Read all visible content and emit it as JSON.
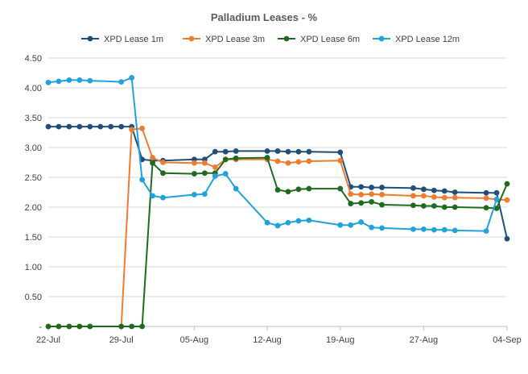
{
  "chart_data": {
    "type": "line",
    "title": "Palladium Leases - %",
    "xlabel": "",
    "ylabel": "",
    "ylim": [
      0,
      4.5
    ],
    "y_ticks": [
      0,
      0.5,
      1.0,
      1.5,
      2.0,
      2.5,
      3.0,
      3.5,
      4.0,
      4.5
    ],
    "y_tick_labels": [
      "-",
      "0.50",
      "1.00",
      "1.50",
      "2.00",
      "2.50",
      "3.00",
      "3.50",
      "4.00",
      "4.50"
    ],
    "x_tick_labels": [
      "22-Jul",
      "29-Jul",
      "05-Aug",
      "12-Aug",
      "19-Aug",
      "27-Aug",
      "04-Sep"
    ],
    "x_tick_categories": [
      "22-Jul",
      "29-Jul",
      "05-Aug",
      "12-Aug",
      "19-Aug",
      "27-Aug",
      "04-Sep"
    ],
    "grid": "horizontal",
    "legend_position": "top",
    "categories": [
      "22-Jul",
      "23-Jul",
      "24-Jul",
      "25-Jul",
      "26-Jul",
      "27-Jul",
      "28-Jul",
      "29-Jul",
      "30-Jul",
      "31-Jul",
      "01-Aug",
      "02-Aug",
      "03-Aug",
      "04-Aug",
      "05-Aug",
      "06-Aug",
      "07-Aug",
      "08-Aug",
      "09-Aug",
      "10-Aug",
      "11-Aug",
      "12-Aug",
      "13-Aug",
      "14-Aug",
      "15-Aug",
      "16-Aug",
      "17-Aug",
      "18-Aug",
      "19-Aug",
      "20-Aug",
      "21-Aug",
      "22-Aug",
      "23-Aug",
      "24-Aug",
      "25-Aug",
      "26-Aug",
      "27-Aug",
      "28-Aug",
      "29-Aug",
      "30-Aug",
      "31-Aug",
      "01-Sep",
      "02-Sep",
      "03-Sep",
      "04-Sep"
    ],
    "series": [
      {
        "name": "XPD Lease 1m",
        "color": "#1f4e79",
        "points": [
          [
            "22-Jul",
            3.35
          ],
          [
            "23-Jul",
            3.35
          ],
          [
            "24-Jul",
            3.35
          ],
          [
            "25-Jul",
            3.35
          ],
          [
            "26-Jul",
            3.35
          ],
          [
            "27-Jul",
            3.35
          ],
          [
            "28-Jul",
            3.35
          ],
          [
            "29-Jul",
            3.35
          ],
          [
            "30-Jul",
            3.35
          ],
          [
            "31-Jul",
            2.8
          ],
          [
            "01-Aug",
            2.78
          ],
          [
            "02-Aug",
            2.78
          ],
          [
            "05-Aug",
            2.8
          ],
          [
            "06-Aug",
            2.8
          ],
          [
            "07-Aug",
            2.93
          ],
          [
            "08-Aug",
            2.93
          ],
          [
            "09-Aug",
            2.94
          ],
          [
            "12-Aug",
            2.94
          ],
          [
            "13-Aug",
            2.94
          ],
          [
            "14-Aug",
            2.93
          ],
          [
            "15-Aug",
            2.93
          ],
          [
            "16-Aug",
            2.93
          ],
          [
            "19-Aug",
            2.92
          ],
          [
            "20-Aug",
            2.34
          ],
          [
            "21-Aug",
            2.34
          ],
          [
            "22-Aug",
            2.33
          ],
          [
            "23-Aug",
            2.33
          ],
          [
            "26-Aug",
            2.32
          ],
          [
            "27-Aug",
            2.3
          ],
          [
            "28-Aug",
            2.28
          ],
          [
            "29-Aug",
            2.27
          ],
          [
            "30-Aug",
            2.25
          ],
          [
            "02-Sep",
            2.24
          ],
          [
            "03-Sep",
            2.24
          ],
          [
            "04-Sep",
            1.47
          ]
        ]
      },
      {
        "name": "XPD Lease 3m",
        "color": "#ed7d31",
        "points": [
          [
            "22-Jul",
            0
          ],
          [
            "23-Jul",
            0
          ],
          [
            "24-Jul",
            0
          ],
          [
            "25-Jul",
            0
          ],
          [
            "26-Jul",
            0
          ],
          [
            "29-Jul",
            0
          ],
          [
            "30-Jul",
            3.3
          ],
          [
            "31-Jul",
            3.32
          ],
          [
            "01-Aug",
            2.83
          ],
          [
            "02-Aug",
            2.75
          ],
          [
            "05-Aug",
            2.74
          ],
          [
            "06-Aug",
            2.74
          ],
          [
            "07-Aug",
            2.67
          ],
          [
            "08-Aug",
            2.8
          ],
          [
            "09-Aug",
            2.8
          ],
          [
            "12-Aug",
            2.8
          ],
          [
            "13-Aug",
            2.77
          ],
          [
            "14-Aug",
            2.74
          ],
          [
            "15-Aug",
            2.76
          ],
          [
            "16-Aug",
            2.77
          ],
          [
            "19-Aug",
            2.78
          ],
          [
            "20-Aug",
            2.22
          ],
          [
            "21-Aug",
            2.21
          ],
          [
            "22-Aug",
            2.22
          ],
          [
            "23-Aug",
            2.21
          ],
          [
            "26-Aug",
            2.19
          ],
          [
            "27-Aug",
            2.19
          ],
          [
            "28-Aug",
            2.17
          ],
          [
            "29-Aug",
            2.16
          ],
          [
            "30-Aug",
            2.16
          ],
          [
            "02-Sep",
            2.15
          ],
          [
            "03-Sep",
            2.13
          ],
          [
            "04-Sep",
            2.12
          ]
        ]
      },
      {
        "name": "XPD Lease 6m",
        "color": "#1e6b1e",
        "points": [
          [
            "22-Jul",
            0
          ],
          [
            "23-Jul",
            0
          ],
          [
            "24-Jul",
            0
          ],
          [
            "25-Jul",
            0
          ],
          [
            "26-Jul",
            0
          ],
          [
            "29-Jul",
            0
          ],
          [
            "30-Jul",
            0
          ],
          [
            "31-Jul",
            0
          ],
          [
            "01-Aug",
            2.74
          ],
          [
            "02-Aug",
            2.57
          ],
          [
            "05-Aug",
            2.56
          ],
          [
            "06-Aug",
            2.57
          ],
          [
            "07-Aug",
            2.57
          ],
          [
            "08-Aug",
            2.8
          ],
          [
            "09-Aug",
            2.82
          ],
          [
            "12-Aug",
            2.83
          ],
          [
            "13-Aug",
            2.29
          ],
          [
            "14-Aug",
            2.26
          ],
          [
            "15-Aug",
            2.3
          ],
          [
            "16-Aug",
            2.31
          ],
          [
            "19-Aug",
            2.31
          ],
          [
            "20-Aug",
            2.06
          ],
          [
            "21-Aug",
            2.07
          ],
          [
            "22-Aug",
            2.09
          ],
          [
            "23-Aug",
            2.04
          ],
          [
            "26-Aug",
            2.03
          ],
          [
            "27-Aug",
            2.02
          ],
          [
            "28-Aug",
            2.02
          ],
          [
            "29-Aug",
            2.0
          ],
          [
            "30-Aug",
            2.0
          ],
          [
            "02-Sep",
            1.99
          ],
          [
            "03-Sep",
            1.98
          ],
          [
            "04-Sep",
            2.39
          ]
        ]
      },
      {
        "name": "XPD Lease 12m",
        "color": "#21a2db",
        "points": [
          [
            "22-Jul",
            4.09
          ],
          [
            "23-Jul",
            4.11
          ],
          [
            "24-Jul",
            4.13
          ],
          [
            "25-Jul",
            4.13
          ],
          [
            "26-Jul",
            4.12
          ],
          [
            "29-Jul",
            4.1
          ],
          [
            "30-Jul",
            4.17
          ],
          [
            "31-Jul",
            2.46
          ],
          [
            "01-Aug",
            2.19
          ],
          [
            "02-Aug",
            2.16
          ],
          [
            "05-Aug",
            2.21
          ],
          [
            "06-Aug",
            2.22
          ],
          [
            "07-Aug",
            2.52
          ],
          [
            "08-Aug",
            2.56
          ],
          [
            "09-Aug",
            2.31
          ],
          [
            "12-Aug",
            1.74
          ],
          [
            "13-Aug",
            1.69
          ],
          [
            "14-Aug",
            1.74
          ],
          [
            "15-Aug",
            1.77
          ],
          [
            "16-Aug",
            1.78
          ],
          [
            "19-Aug",
            1.7
          ],
          [
            "20-Aug",
            1.7
          ],
          [
            "21-Aug",
            1.75
          ],
          [
            "22-Aug",
            1.66
          ],
          [
            "23-Aug",
            1.65
          ],
          [
            "26-Aug",
            1.63
          ],
          [
            "27-Aug",
            1.63
          ],
          [
            "28-Aug",
            1.62
          ],
          [
            "29-Aug",
            1.62
          ],
          [
            "30-Aug",
            1.61
          ],
          [
            "02-Sep",
            1.6
          ],
          [
            "03-Sep",
            2.13
          ]
        ]
      }
    ]
  }
}
